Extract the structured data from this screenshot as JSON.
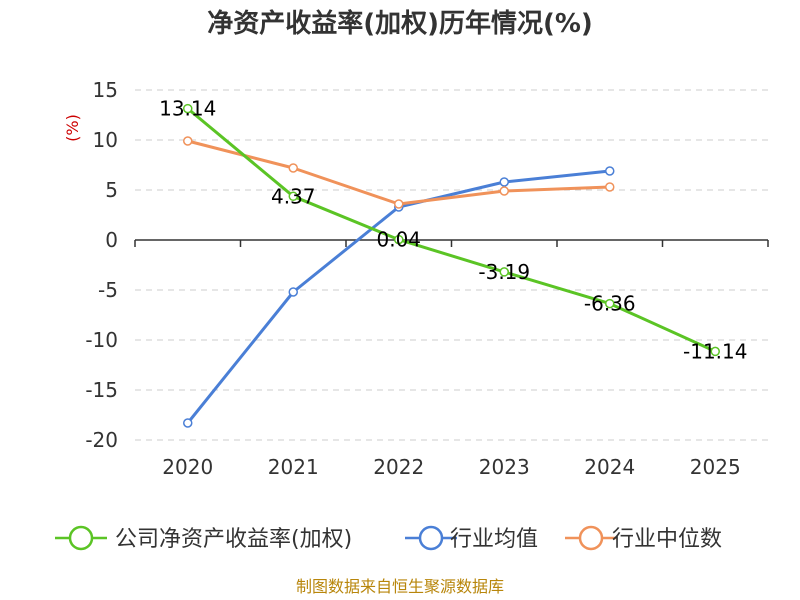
{
  "chart_data": {
    "type": "line",
    "title": "净资产收益率(加权)历年情况(%)",
    "unit_label": "(%)",
    "categories": [
      "2020",
      "2021",
      "2022",
      "2023",
      "2024",
      "2025"
    ],
    "y_ticks": [
      "15",
      "10",
      "5",
      "0",
      "-5",
      "-10",
      "-15",
      "-20"
    ],
    "ylim": [
      -20,
      15
    ],
    "grid": true,
    "legend_position": "bottom",
    "series": [
      {
        "name": "公司净资产收益率(加权)",
        "color": "#5bc425",
        "values": [
          13.14,
          4.37,
          0.04,
          -3.19,
          -6.36,
          -11.14
        ],
        "labels": [
          "13.14",
          "4.37",
          "0.04",
          "-3.19",
          "-6.36",
          "-11.14"
        ]
      },
      {
        "name": "行业均值",
        "color": "#4a7fd6",
        "values": [
          -18.3,
          -5.2,
          3.3,
          5.8,
          6.9,
          null
        ]
      },
      {
        "name": "行业中位数",
        "color": "#f0925a",
        "values": [
          9.9,
          7.2,
          3.6,
          4.9,
          5.3,
          null
        ]
      }
    ],
    "source": "制图数据来自恒生聚源数据库"
  }
}
